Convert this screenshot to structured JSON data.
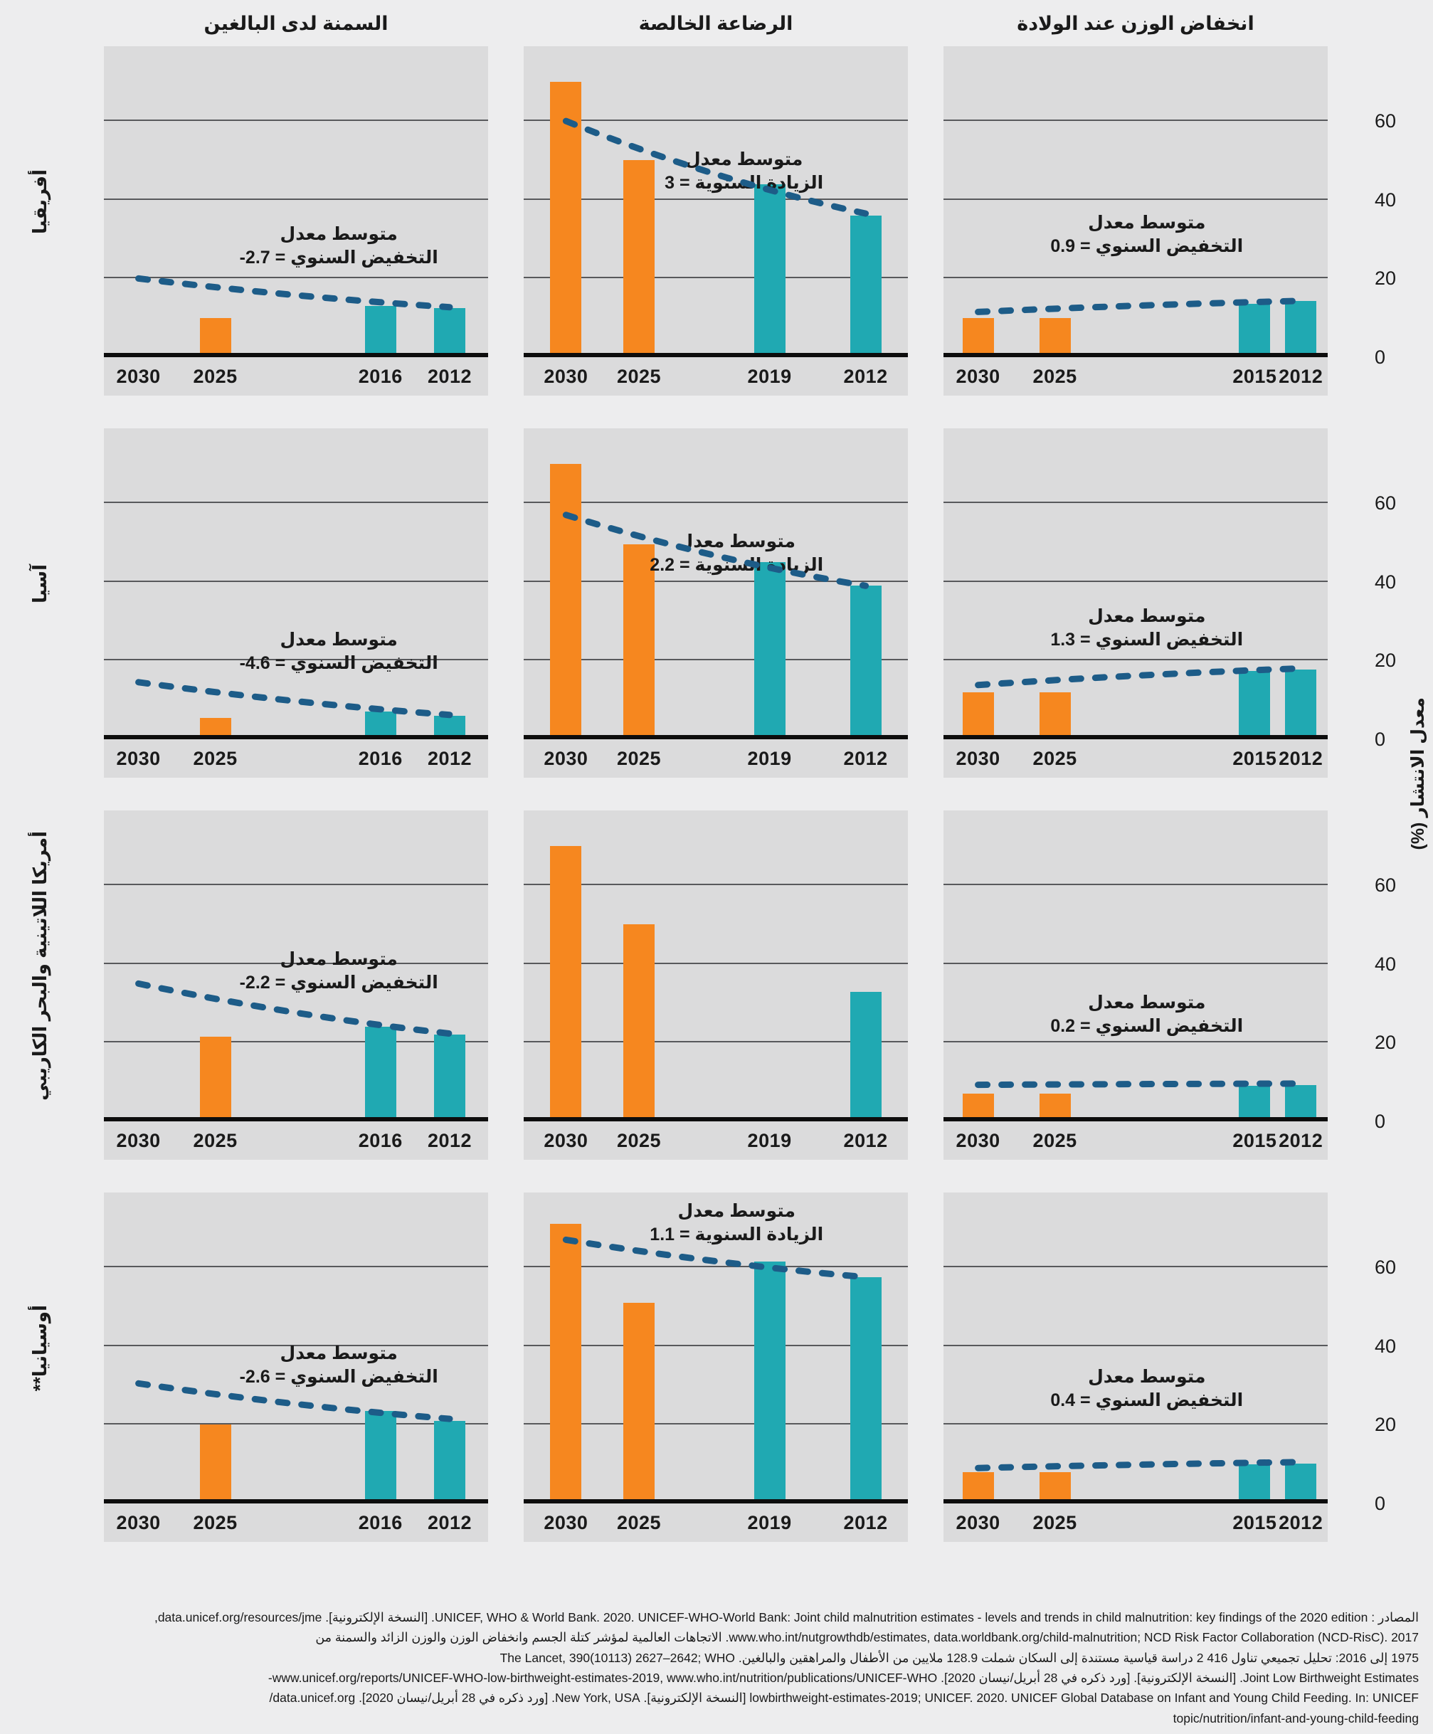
{
  "colors": {
    "orange": "#F6871F",
    "teal": "#20A9B2",
    "trend": "#1D5C88",
    "panel_bg": "#DBDBDC",
    "page_bg": "#EDEDEE",
    "gridline": "#58595C",
    "axis": "#0D0D0D"
  },
  "chart_data": {
    "type": "bar",
    "ylabel": "معدل الانتشار (%)",
    "yticks": [
      60,
      40,
      20,
      0
    ],
    "ylim": [
      0,
      79
    ],
    "gridlines": [
      20,
      40,
      60
    ],
    "legend_position": "none",
    "columns": [
      {
        "key": "adult_obesity",
        "title": "السمنة لدى البالغين"
      },
      {
        "key": "exclusive_breastfeeding",
        "title": "الرضاعة الخالصة"
      },
      {
        "key": "low_birthweight",
        "title": "انخفاض الوزن عند الولادة"
      }
    ],
    "rows": [
      {
        "key": "africa",
        "region": "أفريقيا",
        "charts": [
          {
            "metric": "adult_obesity",
            "years": [
              "2030",
              "2025",
              "2016",
              "2012"
            ],
            "values": [
              null,
              10,
              13,
              12.5
            ],
            "bar_colors": [
              "orange",
              "orange",
              "teal",
              "teal"
            ],
            "trend": {
              "from": 20,
              "to": 12.7
            },
            "annotation": {
              "line1": "متوسط معدل",
              "label": "التخفيض السنوي =",
              "value": "-2.7",
              "anchor": 22
            }
          },
          {
            "metric": "exclusive_breastfeeding",
            "years": [
              "2030",
              "2025",
              "2019",
              "2012"
            ],
            "values": [
              70,
              50,
              44,
              36
            ],
            "bar_colors": [
              "orange",
              "orange",
              "teal",
              "teal"
            ],
            "trend": {
              "from": 60,
              "to": 36.5
            },
            "annotation": {
              "line1": "متوسط معدل",
              "label": "الزيادة السنوية =",
              "value": "3",
              "anchor": 41
            }
          },
          {
            "metric": "low_birthweight",
            "years": [
              "2030",
              "2025",
              "2015",
              "2012"
            ],
            "values": [
              10,
              10,
              13.5,
              14.3
            ],
            "bar_colors": [
              "orange",
              "orange",
              "teal",
              "teal"
            ],
            "trend": {
              "from": 11.5,
              "to": 14.3
            },
            "annotation": {
              "line1": "متوسط معدل",
              "label": "التخفيض السنوي =",
              "value": "0.9",
              "anchor": 25
            }
          }
        ]
      },
      {
        "key": "asia",
        "region": "آسيا",
        "charts": [
          {
            "metric": "adult_obesity",
            "years": [
              "2030",
              "2025",
              "2016",
              "2012"
            ],
            "values": [
              null,
              5.5,
              7,
              6
            ],
            "bar_colors": [
              "orange",
              "orange",
              "teal",
              "teal"
            ],
            "trend": {
              "from": 14.5,
              "to": 6.2
            },
            "annotation": {
              "line1": "متوسط معدل",
              "label": "التخفيض السنوي =",
              "value": "-4.6",
              "anchor": 16
            }
          },
          {
            "metric": "exclusive_breastfeeding",
            "years": [
              "2030",
              "2025",
              "2019",
              "2012"
            ],
            "values": [
              70,
              49.5,
              45,
              39
            ],
            "bar_colors": [
              "orange",
              "orange",
              "teal",
              "teal"
            ],
            "trend": {
              "from": 57,
              "to": 39
            },
            "annotation": {
              "line1": "متوسط معدل",
              "label": "الزيادة السنوية =",
              "value": "2.2",
              "anchor": 41
            }
          },
          {
            "metric": "low_birthweight",
            "years": [
              "2030",
              "2025",
              "2015",
              "2012"
            ],
            "values": [
              12,
              12,
              17.3,
              17.8
            ],
            "bar_colors": [
              "orange",
              "orange",
              "teal",
              "teal"
            ],
            "trend": {
              "from": 13.8,
              "to": 18
            },
            "annotation": {
              "line1": "متوسط معدل",
              "label": "التخفيض السنوي =",
              "value": "1.3",
              "anchor": 22
            }
          }
        ]
      },
      {
        "key": "latin-america-caribbean",
        "region": "أمريكا اللاتينية والبحر الكاريبي",
        "charts": [
          {
            "metric": "adult_obesity",
            "years": [
              "2030",
              "2025",
              "2016",
              "2012"
            ],
            "values": [
              null,
              21.5,
              24,
              22
            ],
            "bar_colors": [
              "orange",
              "orange",
              "teal",
              "teal"
            ],
            "trend": {
              "from": 35,
              "to": 22.3
            },
            "annotation": {
              "line1": "متوسط معدل",
              "label": "التخفيض السنوي =",
              "value": "-2.2",
              "anchor": 32
            }
          },
          {
            "metric": "exclusive_breastfeeding",
            "years": [
              "2030",
              "2025",
              "2019",
              "2012"
            ],
            "values": [
              70,
              50,
              null,
              33
            ],
            "bar_colors": [
              "orange",
              "orange",
              "teal",
              "teal"
            ],
            "trend": null,
            "annotation": null
          },
          {
            "metric": "low_birthweight",
            "years": [
              "2030",
              "2025",
              "2015",
              "2012"
            ],
            "values": [
              7,
              7,
              9,
              9.2
            ],
            "bar_colors": [
              "orange",
              "orange",
              "teal",
              "teal"
            ],
            "trend": {
              "from": 9.3,
              "to": 9.6
            },
            "annotation": {
              "line1": "متوسط معدل",
              "label": "التخفيض السنوي =",
              "value": "0.2",
              "anchor": 21
            }
          }
        ]
      },
      {
        "key": "oceania",
        "region": "أوسيانيا**",
        "charts": [
          {
            "metric": "adult_obesity",
            "years": [
              "2030",
              "2025",
              "2016",
              "2012"
            ],
            "values": [
              null,
              20,
              23.5,
              21
            ],
            "bar_colors": [
              "orange",
              "orange",
              "teal",
              "teal"
            ],
            "trend": {
              "from": 30.5,
              "to": 21.5
            },
            "annotation": {
              "line1": "متوسط معدل",
              "label": "التخفيض السنوي =",
              "value": "-2.6",
              "anchor": 29
            }
          },
          {
            "metric": "exclusive_breastfeeding",
            "years": [
              "2030",
              "2025",
              "2019",
              "2012"
            ],
            "values": [
              71,
              51,
              61.5,
              57.5
            ],
            "bar_colors": [
              "orange",
              "orange",
              "teal",
              "teal"
            ],
            "trend": {
              "from": 67,
              "to": 57.5
            },
            "annotation": {
              "line1": "متوسط معدل",
              "label": "الزيادة السنوية =",
              "value": "1.1",
              "anchor": 65
            }
          },
          {
            "metric": "low_birthweight",
            "years": [
              "2030",
              "2025",
              "2015",
              "2012"
            ],
            "values": [
              8,
              8,
              10,
              10.2
            ],
            "bar_colors": [
              "orange",
              "orange",
              "teal",
              "teal"
            ],
            "trend": {
              "from": 9,
              "to": 10.5
            },
            "annotation": {
              "line1": "متوسط معدل",
              "label": "التخفيض السنوي =",
              "value": "0.4",
              "anchor": 23
            }
          }
        ]
      }
    ]
  },
  "footer": {
    "lines": [
      "المصادر : UNICEF, WHO & World Bank. 2020. UNICEF-WHO-World Bank: Joint child malnutrition estimates - levels and trends in child malnutrition: key findings of the 2020 edition. [النسخة الإلكترونية]. data.unicef.org/resources/jme,",
      "www.who.int/nutgrowthdb/estimates, data.worldbank.org/child-malnutrition; NCD Risk Factor Collaboration (NCD-RisC). 2017. الاتجاهات العالمية لمؤشر كتلة الجسم وانخفاض الوزن والوزن الزائد والسمنة من",
      "1975 إلى 2016: تحليل تجميعي تناول 416 2 دراسة قياسية مستندة إلى السكان شملت 128.9 ملايين من الأطفال والمراهقين والبالغين. The Lancet, 390(10113) 2627–2642; WHO",
      "Joint Low Birthweight Estimates. [النسخة الإلكترونية]. [ورد ذكره في 28 أبريل/نيسان 2020]. www.unicef.org/reports/UNICEF-WHO-low-birthweight-estimates-2019, www.who.int/nutrition/publications/UNICEF-WHO-",
      "lowbirthweight-estimates-2019; UNICEF. 2020. UNICEF Global Database on Infant and Young Child Feeding. In: UNICEF [النسخة الإلكترونية]. New York, USA. [ورد ذكره في 28 أبريل/نيسان 2020]. data.unicef.org/",
      "topic/nutrition/infant-and-young-child-feeding"
    ]
  }
}
